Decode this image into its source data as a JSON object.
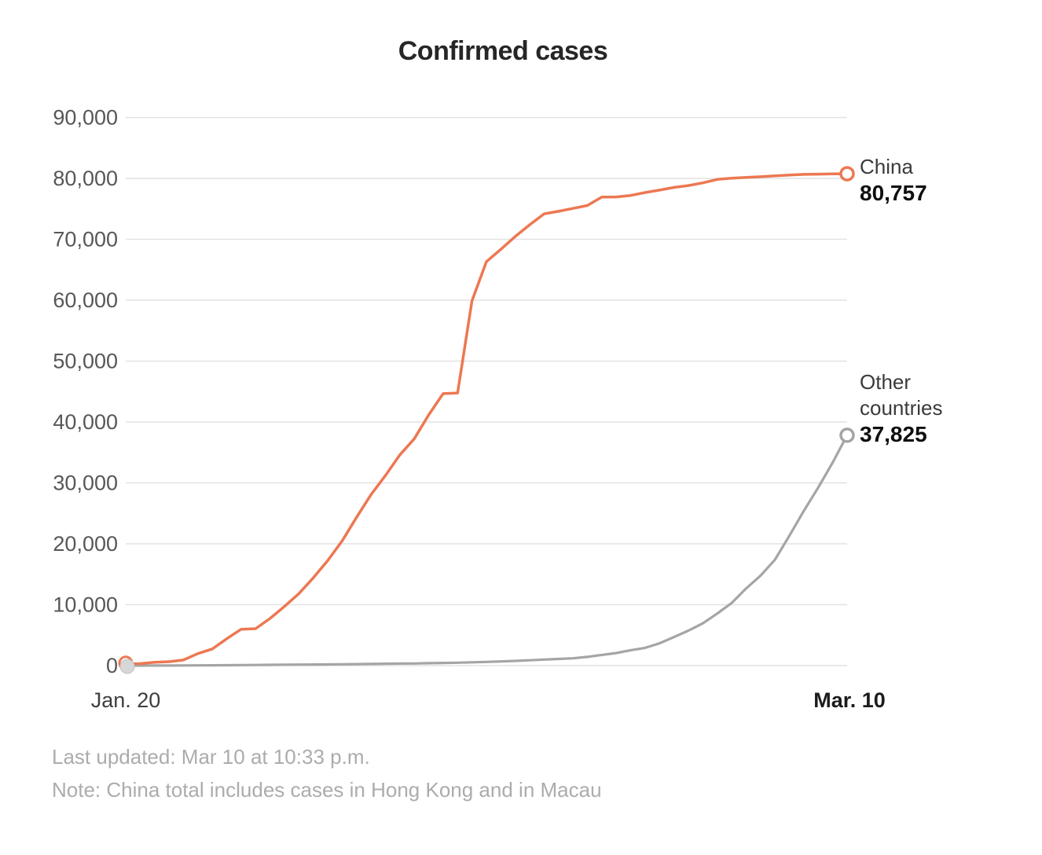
{
  "chart_data": {
    "type": "line",
    "title": "Confirmed cases",
    "x_axis": {
      "start_label": "Jan. 20",
      "end_label": "Mar. 10",
      "dates": [
        "Jan. 20",
        "Jan. 21",
        "Jan. 22",
        "Jan. 23",
        "Jan. 24",
        "Jan. 25",
        "Jan. 26",
        "Jan. 27",
        "Jan. 28",
        "Jan. 29",
        "Jan. 30",
        "Jan. 31",
        "Feb. 1",
        "Feb. 2",
        "Feb. 3",
        "Feb. 4",
        "Feb. 5",
        "Feb. 6",
        "Feb. 7",
        "Feb. 8",
        "Feb. 9",
        "Feb. 10",
        "Feb. 11",
        "Feb. 12",
        "Feb. 13",
        "Feb. 14",
        "Feb. 15",
        "Feb. 16",
        "Feb. 17",
        "Feb. 18",
        "Feb. 19",
        "Feb. 20",
        "Feb. 21",
        "Feb. 22",
        "Feb. 23",
        "Feb. 24",
        "Feb. 25",
        "Feb. 26",
        "Feb. 27",
        "Feb. 28",
        "Feb. 29",
        "Mar. 1",
        "Mar. 2",
        "Mar. 3",
        "Mar. 4",
        "Mar. 5",
        "Mar. 6",
        "Mar. 7",
        "Mar. 8",
        "Mar. 9",
        "Mar. 10"
      ]
    },
    "y_axis": {
      "range": [
        0,
        90000
      ],
      "gridlines": true,
      "ticks": [
        {
          "value": 0,
          "label": "0"
        },
        {
          "value": 10000,
          "label": "10,000"
        },
        {
          "value": 20000,
          "label": "20,000"
        },
        {
          "value": 30000,
          "label": "30,000"
        },
        {
          "value": 40000,
          "label": "40,000"
        },
        {
          "value": 50000,
          "label": "50,000"
        },
        {
          "value": 60000,
          "label": "60,000"
        },
        {
          "value": 70000,
          "label": "70,000"
        },
        {
          "value": 80000,
          "label": "80,000"
        },
        {
          "value": 90000,
          "label": "90,000"
        }
      ]
    },
    "legend_position": "right-annotations",
    "series": [
      {
        "name": "China",
        "color": "#ec7852",
        "end_value": 80757,
        "end_label": "80,757",
        "values": [
          278,
          326,
          547,
          639,
          916,
          1979,
          2737,
          4409,
          5970,
          6065,
          7736,
          9720,
          11821,
          14411,
          17238,
          20471,
          24363,
          28060,
          31211,
          34598,
          37251,
          41171,
          44653,
          44759,
          59882,
          66337,
          68355,
          70463,
          72389,
          74175,
          74588,
          75077,
          75550,
          76936,
          76960,
          77198,
          77673,
          78073,
          78512,
          78832,
          79263,
          79834,
          80030,
          80154,
          80274,
          80413,
          80557,
          80653,
          80703,
          80738,
          80757
        ]
      },
      {
        "name": "Other countries",
        "color": "#a5a5a5",
        "end_value": 37825,
        "end_label": "37,825",
        "values": [
          4,
          6,
          8,
          14,
          25,
          40,
          57,
          64,
          87,
          105,
          128,
          153,
          173,
          183,
          196,
          219,
          244,
          273,
          305,
          330,
          354,
          399,
          441,
          472,
          538,
          603,
          683,
          769,
          872,
          999,
          1103,
          1201,
          1438,
          1752,
          2069,
          2531,
          2918,
          3664,
          4691,
          5746,
          6936,
          8558,
          10288,
          12668,
          14767,
          17397,
          21341,
          25404,
          29256,
          33341,
          37825
        ]
      }
    ]
  },
  "colors": {
    "china_line": "#ec7852",
    "other_line": "#a5a5a5",
    "gridline": "#e2e2e2",
    "tick_label": "#575757",
    "start_marker_fill": "#d7d7d7"
  },
  "footer": {
    "updated": "Last updated: Mar 10 at 10:33 p.m.",
    "note": "Note: China total includes cases in Hong Kong and in Macau"
  }
}
